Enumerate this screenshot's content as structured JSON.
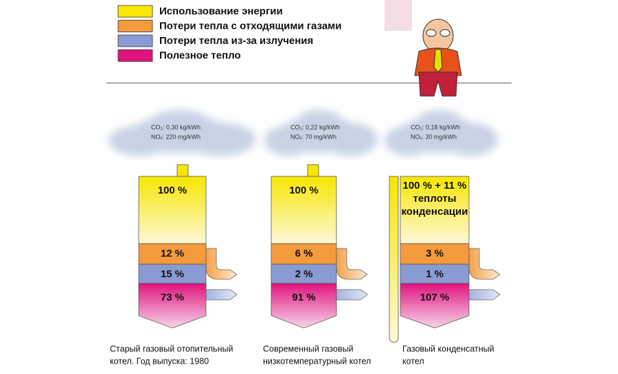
{
  "legend": [
    "Использование энергии",
    "Потери тепла с отходящими газами",
    "Потери тепла из-за излучения",
    "Полезное тепло"
  ],
  "boilers": [
    {
      "co2": "CO₂: 0,30 kg/kWh",
      "nox": "NOₓ: 220 mg/kWh",
      "energy": [
        "100 %"
      ],
      "flue_loss": "12 %",
      "radiation_loss": "15 %",
      "useful": "73 %",
      "caption": [
        "Старый газовый отопительный",
        "котел. Год выпуска: 1980"
      ]
    },
    {
      "co2": "CO₂: 0,22 kg/kWh",
      "nox": "NOₓ: 70 mg/kWh",
      "energy": [
        "100 %"
      ],
      "flue_loss": "6 %",
      "radiation_loss": "2 %",
      "useful": "91 %",
      "caption": [
        "Современный газовый",
        "низкотемпературный котел"
      ]
    },
    {
      "co2": "CO₂: 0,18 kg/kWh",
      "nox": "NOₓ: 30 mg/kWh",
      "energy": [
        "100 % + 11 %",
        "теплоты",
        "конденсации"
      ],
      "flue_loss": "3 %",
      "radiation_loss": "1 %",
      "useful": "107 %",
      "caption": [
        "Газовый конденсатный",
        "котел"
      ]
    }
  ]
}
